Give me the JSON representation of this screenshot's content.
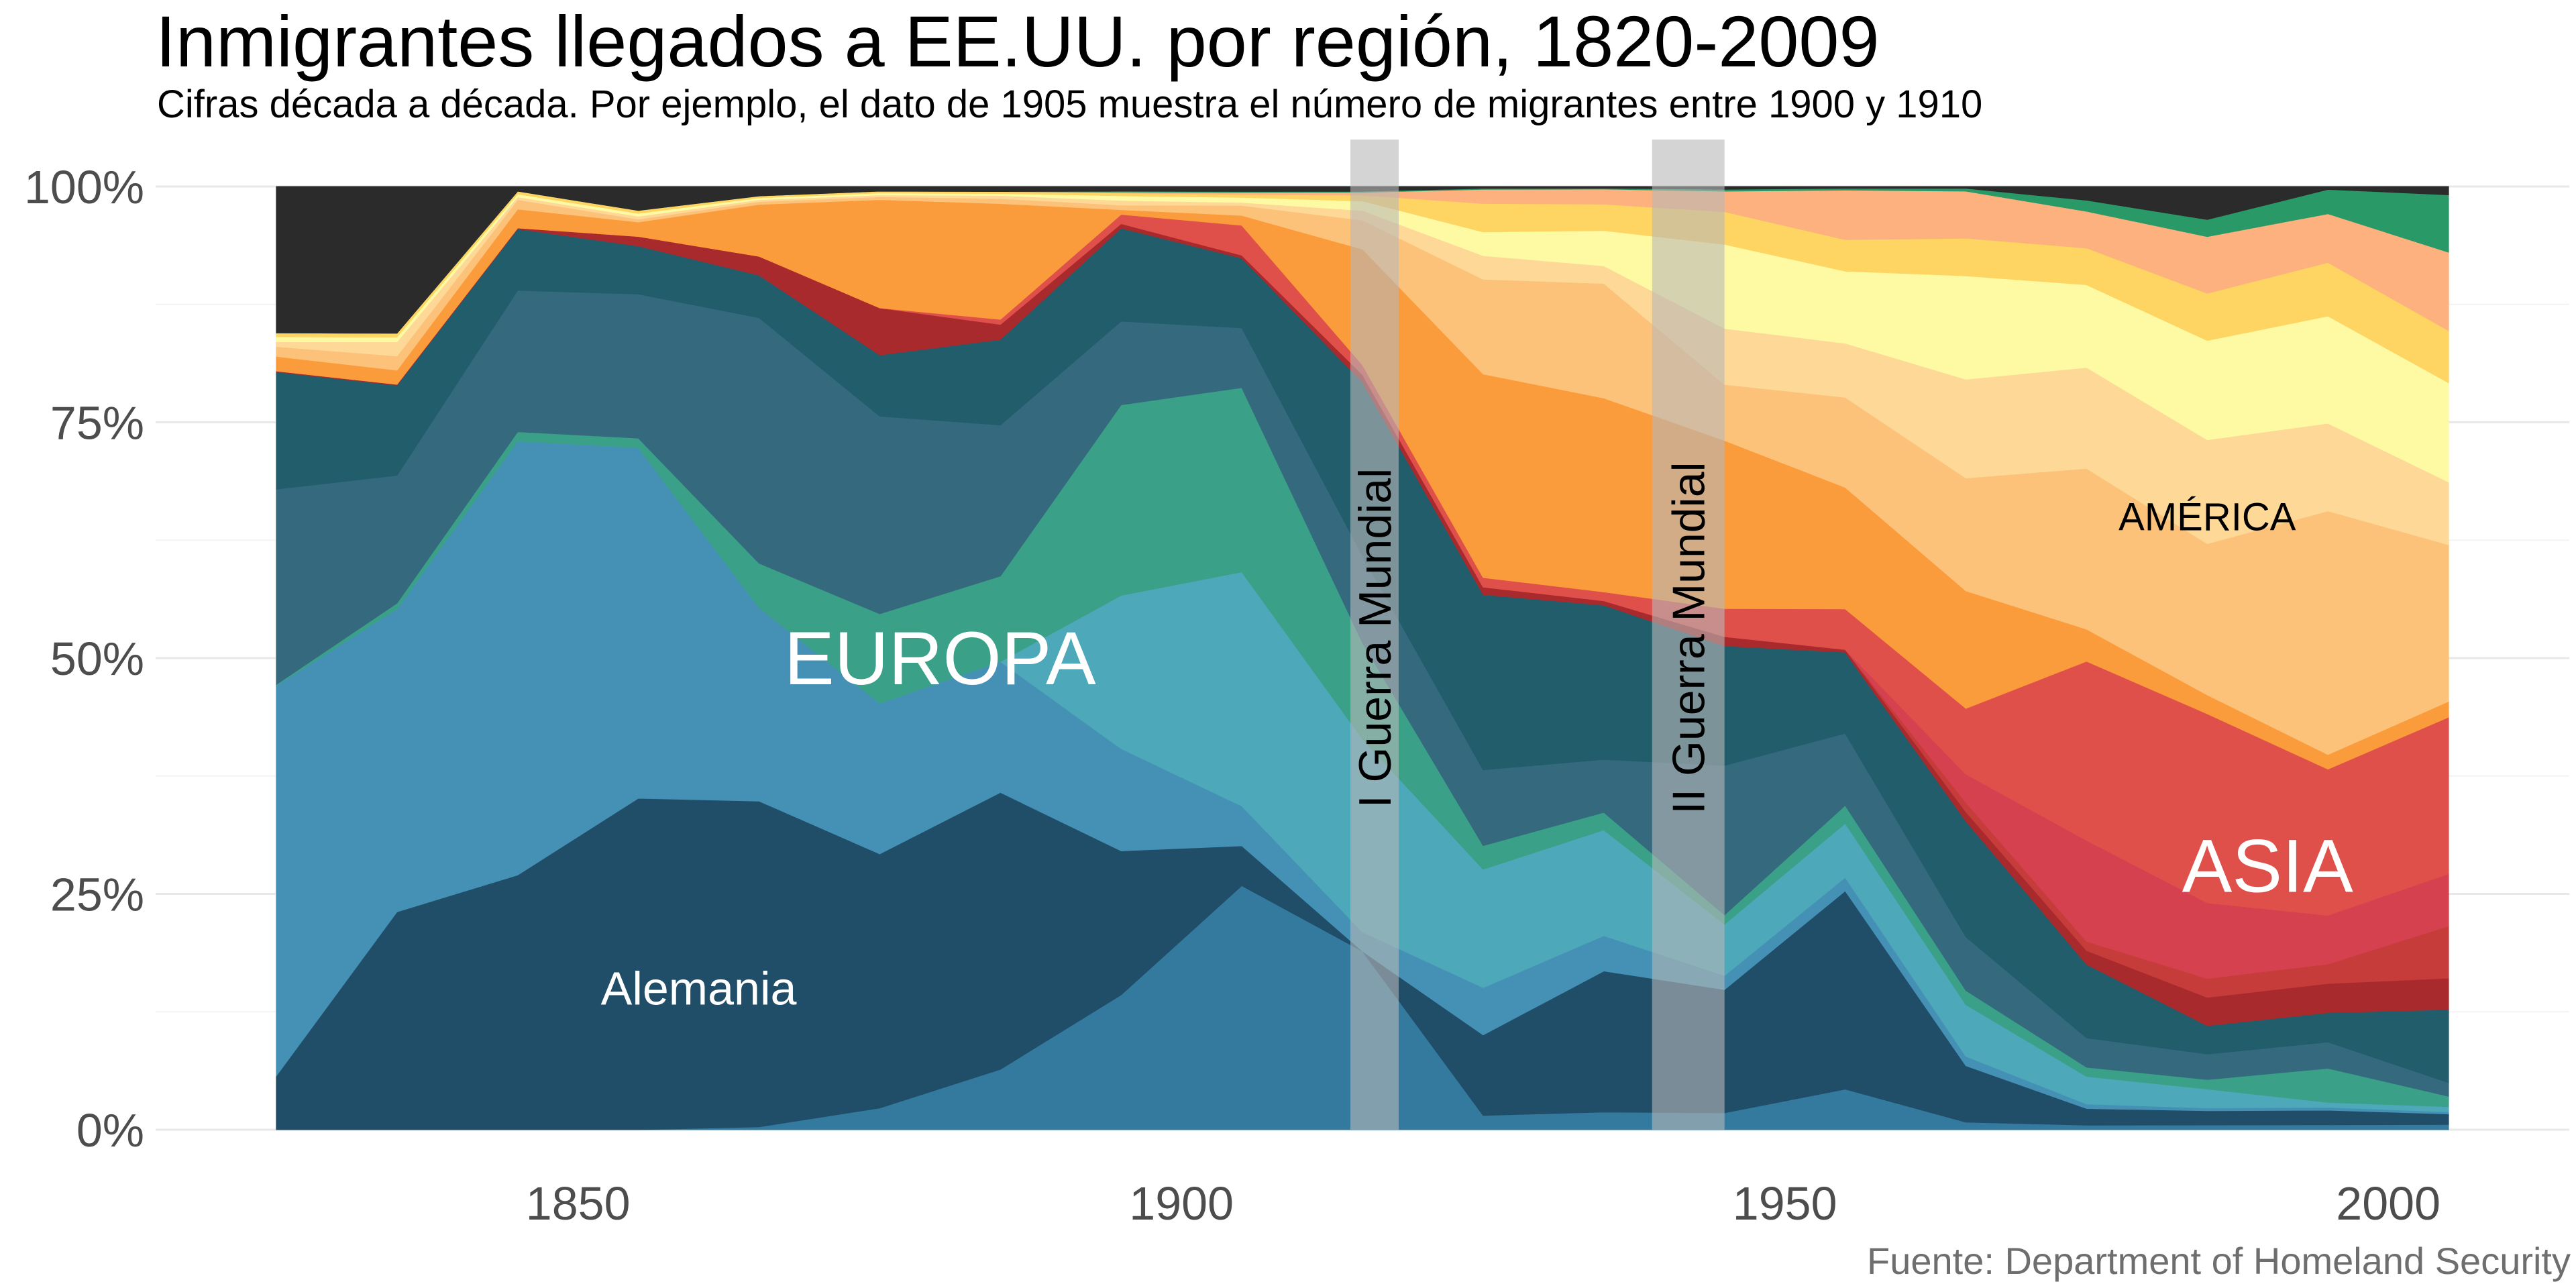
{
  "title": "Inmigrantes llegados a EE.UU. por región, 1820-2009",
  "subtitle": "Cifras década a década. Por ejemplo, el dato de 1905 muestra el número de migrantes entre 1900 y 1910",
  "caption": "Fuente: Department of Homeland Security",
  "chart_data": {
    "type": "area",
    "stacked": true,
    "normalized": true,
    "x": [
      1825,
      1835,
      1845,
      1855,
      1865,
      1875,
      1885,
      1895,
      1905,
      1915,
      1925,
      1935,
      1945,
      1955,
      1965,
      1975,
      1985,
      1995,
      2005
    ],
    "xticks": [
      "1850",
      "1900",
      "1950",
      "2000"
    ],
    "xlim": [
      1815,
      2015
    ],
    "yticks": [
      "0%",
      "25%",
      "50%",
      "75%",
      "100%"
    ],
    "ylim": [
      0,
      100
    ],
    "grid": true,
    "series": [
      {
        "color": "#337a9e",
        "values": [
          0,
          0,
          0,
          0,
          0.3,
          2.3,
          6,
          14.5,
          24.5,
          18.5,
          1.5,
          2,
          1.8,
          4.5,
          0.8,
          0.5,
          0.5,
          0.5,
          0.5
        ]
      },
      {
        "color": "#204d67",
        "values": [
          5.5,
          23,
          27,
          34.5,
          34.5,
          27,
          27.5,
          15.5,
          4,
          0,
          8.5,
          16,
          13.2,
          22,
          6,
          1.8,
          1.5,
          1.5,
          1
        ]
      },
      {
        "color": "#4591b5",
        "values": [
          40,
          32,
          46,
          36.5,
          20.5,
          16,
          13,
          11,
          4,
          2,
          5,
          4,
          1.5,
          1.5,
          1,
          0.5,
          0.3,
          0.3,
          0.2
        ]
      },
      {
        "color": "#4da8b9",
        "values": [
          0,
          0,
          0,
          0,
          0,
          0,
          0,
          16.5,
          23.5,
          20,
          12.5,
          12,
          5.5,
          6,
          5.5,
          3,
          2,
          0.5,
          0.5
        ]
      },
      {
        "color": "#3aa087",
        "values": [
          0.1,
          0.6,
          1,
          1,
          4.7,
          9.5,
          8.5,
          20.5,
          18.5,
          10,
          2.5,
          2,
          1,
          2,
          1.5,
          1,
          1,
          3.5,
          1
        ]
      },
      {
        "color": "#35697e",
        "values": [
          20,
          13.5,
          15,
          15,
          26,
          21,
          15,
          9,
          6,
          9,
          8,
          6,
          16,
          8,
          5.7,
          3.2,
          2.7,
          2.7,
          1.3
        ]
      },
      {
        "color": "#225d6c",
        "values": [
          12,
          9.5,
          6.5,
          5,
          4.5,
          6.5,
          8.5,
          10,
          7,
          18,
          18.5,
          17.5,
          12.8,
          9,
          12.3,
          8,
          3,
          3,
          7
        ]
      },
      {
        "color": "#a82a2d",
        "values": [
          0.1,
          0.1,
          0.1,
          1,
          2,
          5,
          1.5,
          0.5,
          0.3,
          0.8,
          0.8,
          0.5,
          1,
          0.3,
          1,
          1.5,
          3,
          3,
          3
        ]
      },
      {
        "color": "#c53c3b",
        "values": [
          0,
          0,
          0,
          0,
          0,
          0,
          0,
          0,
          0,
          0,
          0,
          0,
          0,
          0,
          1,
          1,
          2,
          2,
          5
        ]
      },
      {
        "color": "#d6414f",
        "values": [
          0,
          0,
          0,
          0,
          0,
          0,
          0,
          0,
          0,
          0,
          0,
          0,
          0,
          0,
          3,
          11,
          8,
          5,
          5
        ]
      },
      {
        "color": "#e0504a",
        "values": [
          0,
          0,
          0,
          0,
          0,
          0,
          0.5,
          1,
          3,
          1,
          1,
          1,
          3,
          4.5,
          7,
          19.5,
          20,
          15,
          15
        ]
      },
      {
        "color": "#fb9c3c",
        "values": [
          1.5,
          1.5,
          2,
          1.5,
          5.5,
          11.5,
          11.5,
          0.5,
          1,
          12,
          21.5,
          22,
          18,
          13.5,
          12.5,
          3.5,
          2,
          1.5,
          1.5
        ]
      },
      {
        "color": "#fcc27a",
        "values": [
          1,
          1.5,
          1,
          0.3,
          0.3,
          0.3,
          0.5,
          0.5,
          1,
          3,
          10,
          13,
          6,
          10,
          12,
          17.5,
          16,
          25,
          15
        ]
      },
      {
        "color": "#fdd896",
        "values": [
          0.5,
          1.5,
          0.3,
          0.3,
          0.2,
          0.2,
          0.3,
          0.5,
          0.3,
          1,
          2.5,
          2,
          6,
          6,
          10.5,
          11,
          11,
          9,
          6
        ]
      },
      {
        "color": "#fefaa4",
        "values": [
          0.5,
          0.5,
          0.3,
          0.3,
          0.2,
          0.2,
          0.2,
          0.5,
          0.5,
          1,
          2.5,
          4,
          9,
          8,
          11,
          9,
          10.5,
          11,
          9.5
        ]
      },
      {
        "color": "#fed462",
        "values": [
          0.4,
          0.4,
          0.3,
          0.3,
          0.2,
          0.2,
          0.2,
          0.3,
          0.3,
          0.6,
          3,
          3,
          3.5,
          3.5,
          4,
          4,
          5,
          5.5,
          5
        ]
      },
      {
        "color": "#fcb17e",
        "values": [
          0,
          0,
          0,
          0,
          0,
          0,
          0,
          0.1,
          0.2,
          0.3,
          1.5,
          1.7,
          2.2,
          5.5,
          5,
          4,
          6,
          5,
          7.5
        ]
      },
      {
        "color": "#2a9968",
        "values": [
          0,
          0,
          0,
          0,
          0,
          0,
          0,
          0.1,
          0.1,
          0.1,
          0.1,
          0.1,
          0.2,
          0.2,
          0.3,
          1.2,
          1.8,
          2.5,
          5.5
        ]
      },
      {
        "color": "#2b2b2b",
        "values": [
          15,
          15.5,
          0.5,
          2.5,
          1,
          0.5,
          0.5,
          0.5,
          0.5,
          0.5,
          0.2,
          0.2,
          0.3,
          0.2,
          0.2,
          1.5,
          3.5,
          0.3,
          0.8
        ]
      }
    ],
    "bands": [
      {
        "label": "I Guerra Mundial",
        "from": 1914,
        "to": 1918
      },
      {
        "label": "II Guerra Mundial",
        "from": 1939,
        "to": 1945
      }
    ],
    "annotations": [
      {
        "text": "EUROPA",
        "x": 1880,
        "y": 50,
        "color": "#ffffff",
        "size": "large"
      },
      {
        "text": "Alemania",
        "x": 1860,
        "y": 15,
        "color": "#ffffff",
        "size": "medium"
      },
      {
        "text": "AMÉRICA",
        "x": 1985,
        "y": 65,
        "color": "#000000",
        "size": "small"
      },
      {
        "text": "ASIA",
        "x": 1990,
        "y": 28,
        "color": "#ffffff",
        "size": "large"
      }
    ]
  }
}
